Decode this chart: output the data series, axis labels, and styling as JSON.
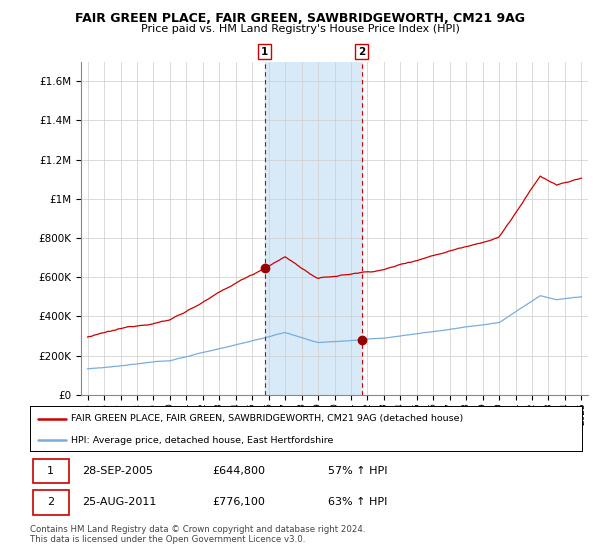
{
  "title": "FAIR GREEN PLACE, FAIR GREEN, SAWBRIDGEWORTH, CM21 9AG",
  "subtitle": "Price paid vs. HM Land Registry's House Price Index (HPI)",
  "legend_line1": "FAIR GREEN PLACE, FAIR GREEN, SAWBRIDGEWORTH, CM21 9AG (detached house)",
  "legend_line2": "HPI: Average price, detached house, East Hertfordshire",
  "annotation1_date": "28-SEP-2005",
  "annotation1_price": "£644,800",
  "annotation1_hpi": "57% ↑ HPI",
  "annotation1_year": 2005.75,
  "annotation2_date": "25-AUG-2011",
  "annotation2_price": "£776,100",
  "annotation2_hpi": "63% ↑ HPI",
  "annotation2_year": 2011.65,
  "footer1": "Contains HM Land Registry data © Crown copyright and database right 2024.",
  "footer2": "This data is licensed under the Open Government Licence v3.0.",
  "red_color": "#cc0000",
  "blue_color": "#7aaddc",
  "shaded_color": "#d8eaf7",
  "ylim_max": 1700000,
  "background_color": "#ffffff",
  "grid_color": "#cccccc"
}
